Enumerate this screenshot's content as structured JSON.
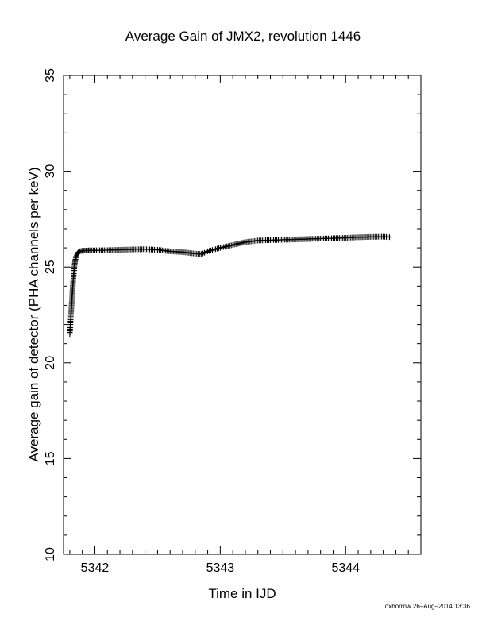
{
  "chart_data": {
    "type": "scatter",
    "title": "Average Gain of JMX2, revolution 1446",
    "xlabel": "Time in IJD",
    "ylabel": "Average gain of detector (PHA channels per keV)",
    "xlim": [
      5341.75,
      5344.6
    ],
    "ylim": [
      10,
      35
    ],
    "xticks": [
      5342,
      5343,
      5344
    ],
    "yticks": [
      10,
      15,
      20,
      25,
      30,
      35
    ],
    "marker": "+",
    "marker_color": "#000000",
    "grid": false,
    "legend": "none",
    "series": [
      {
        "x": [
          5341.8,
          5341.805,
          5341.81,
          5341.815,
          5341.82,
          5341.825,
          5341.83,
          5341.835,
          5341.84,
          5341.845,
          5341.85,
          5341.86,
          5341.87,
          5341.88,
          5341.9,
          5341.93,
          5341.96,
          5342.0,
          5342.1,
          5342.2,
          5342.3,
          5342.4,
          5342.5,
          5342.6,
          5342.7,
          5342.8,
          5342.85,
          5342.9,
          5343.0,
          5343.1,
          5343.2,
          5343.3,
          5343.4,
          5343.5,
          5343.6,
          5343.7,
          5343.8,
          5343.9,
          5344.0,
          5344.1,
          5344.2,
          5344.3,
          5344.35
        ],
        "y": [
          21.5,
          22.0,
          22.6,
          23.1,
          23.6,
          24.1,
          24.5,
          24.9,
          25.2,
          25.4,
          25.55,
          25.7,
          25.78,
          25.82,
          25.85,
          25.86,
          25.87,
          25.87,
          25.88,
          25.9,
          25.92,
          25.93,
          25.9,
          25.82,
          25.78,
          25.7,
          25.68,
          25.82,
          26.0,
          26.15,
          26.3,
          26.38,
          26.4,
          26.42,
          26.44,
          26.46,
          26.48,
          26.5,
          26.52,
          26.55,
          26.57,
          26.58,
          26.56
        ]
      }
    ]
  },
  "footer": "oxborrow 26–Aug–2014 13:36"
}
